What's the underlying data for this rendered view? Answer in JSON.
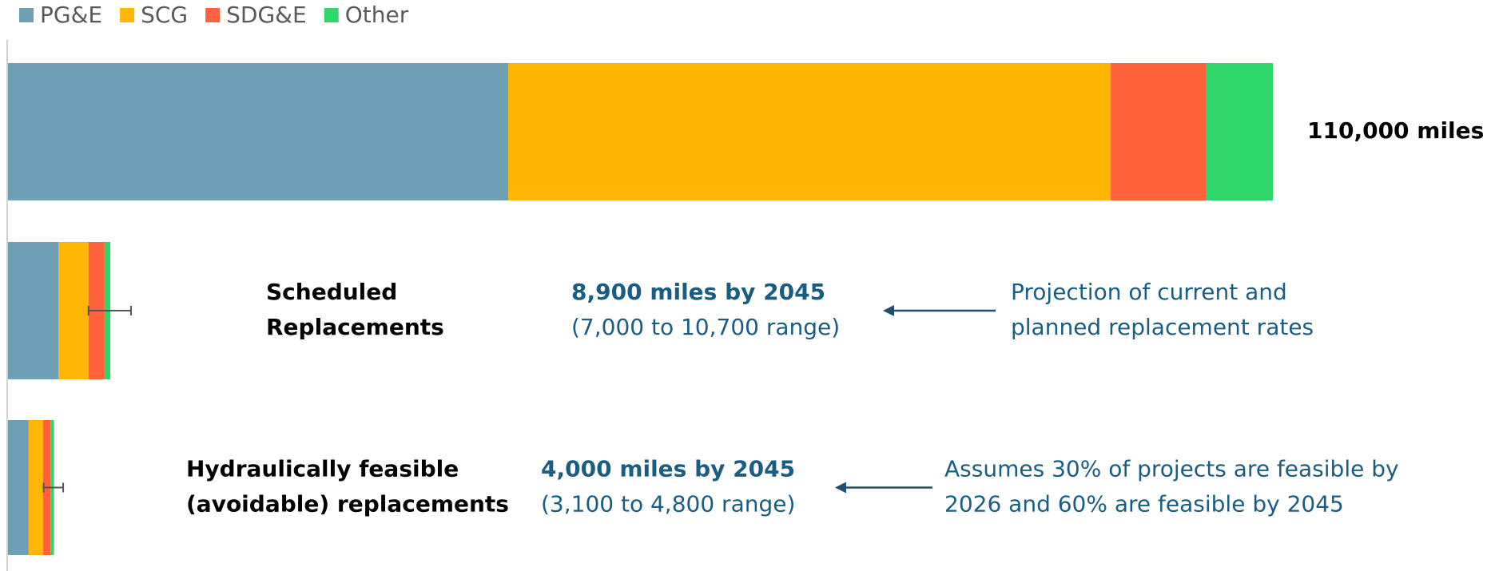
{
  "chart_data": {
    "type": "stacked_bar_horizontal",
    "categories": [
      null,
      [
        "Scheduled",
        "Replacements"
      ],
      [
        "Hydraulically feasible",
        "(avoidable) replacements"
      ]
    ],
    "series": [
      {
        "name": "PG&E",
        "color": "#6f9fb5",
        "values": [
          43500,
          4400,
          1800
        ]
      },
      {
        "name": "SCG",
        "color": "#ffb703",
        "values": [
          52400,
          2600,
          1250
        ]
      },
      {
        "name": "SDG&E",
        "color": "#ff623c",
        "values": [
          8300,
          1400,
          650
        ]
      },
      {
        "name": "Other",
        "color": "#2fd66a",
        "values": [
          5800,
          500,
          300
        ]
      }
    ],
    "totals": [
      110000,
      8900,
      4000
    ],
    "total_labels": [
      "110,000 miles",
      "8,900 miles by 2045",
      "4,000 miles by 2045"
    ],
    "ranges": [
      null,
      [
        7000,
        10700
      ],
      [
        3100,
        4800
      ]
    ],
    "range_labels": [
      null,
      "(7,000 to 10,700 range)",
      "(3,100 to 4,800 range)"
    ],
    "notes": [
      null,
      [
        "Projection of current and",
        "planned replacement rates"
      ],
      [
        "Assumes 30% of projects are feasible by",
        "2026 and 60% are feasible by 2045"
      ]
    ],
    "xlim": [
      0,
      110000
    ],
    "legend": "top-left"
  }
}
